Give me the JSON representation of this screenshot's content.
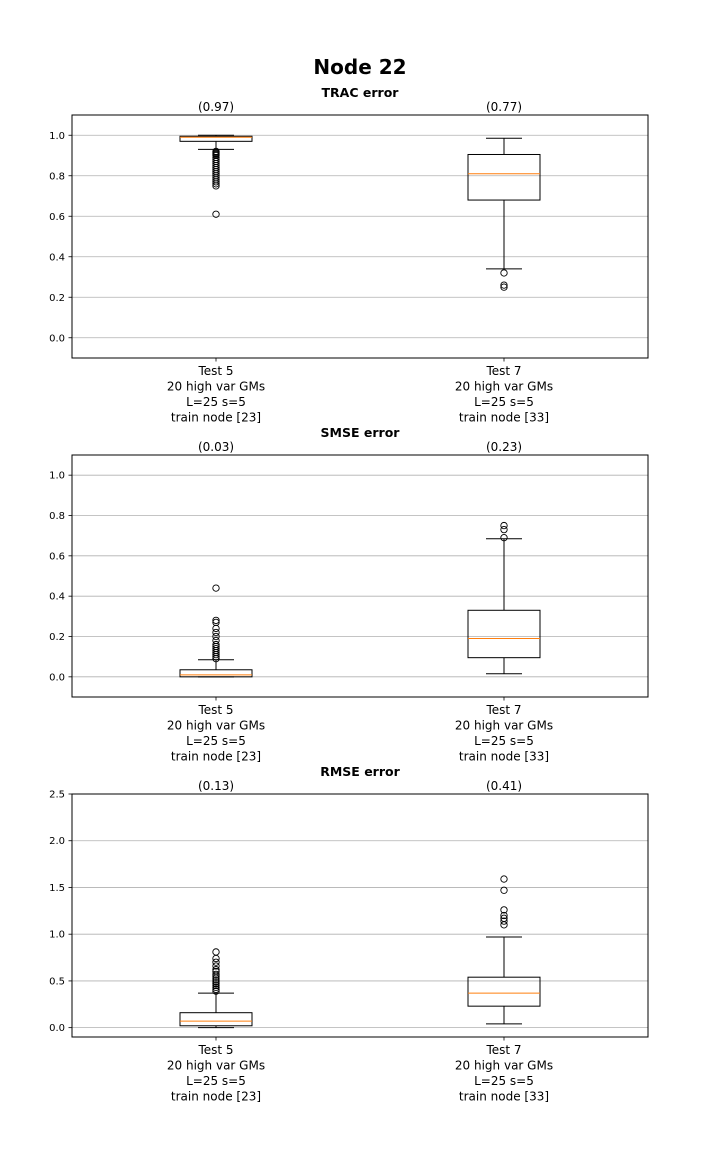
{
  "figure": {
    "title": "Node 22"
  },
  "chart_data": [
    {
      "type": "box",
      "title": "TRAC error",
      "ylim": [
        -0.1,
        1.1
      ],
      "yticks": [
        0.0,
        0.2,
        0.4,
        0.6,
        0.8,
        1.0
      ],
      "ytick_labels": [
        "0.0",
        "0.2",
        "0.4",
        "0.6",
        "0.8",
        "1.0"
      ],
      "grid": "y",
      "boxes": [
        {
          "annotation": "(0.97)",
          "label_lines": [
            "Test 5",
            "20 high var GMs",
            "L=25 s=5",
            "train node [23]"
          ],
          "whisker_low": 0.93,
          "q1": 0.97,
          "median": 0.99,
          "q3": 0.995,
          "whisker_high": 1.0,
          "fliers": [
            0.61,
            0.75,
            0.76,
            0.77,
            0.78,
            0.79,
            0.8,
            0.81,
            0.82,
            0.83,
            0.84,
            0.85,
            0.86,
            0.87,
            0.88,
            0.89,
            0.9,
            0.905,
            0.91,
            0.915,
            0.92
          ]
        },
        {
          "annotation": "(0.77)",
          "label_lines": [
            "Test 7",
            "20 high var GMs",
            "L=25 s=5",
            "train node [33]"
          ],
          "whisker_low": 0.34,
          "q1": 0.68,
          "median": 0.81,
          "q3": 0.905,
          "whisker_high": 0.985,
          "fliers": [
            0.32,
            0.26,
            0.25
          ]
        }
      ]
    },
    {
      "type": "box",
      "title": "SMSE error",
      "ylim": [
        -0.1,
        1.1
      ],
      "yticks": [
        0.0,
        0.2,
        0.4,
        0.6,
        0.8,
        1.0
      ],
      "ytick_labels": [
        "0.0",
        "0.2",
        "0.4",
        "0.6",
        "0.8",
        "1.0"
      ],
      "grid": "y",
      "boxes": [
        {
          "annotation": "(0.03)",
          "label_lines": [
            "Test 5",
            "20 high var GMs",
            "L=25 s=5",
            "train node [23]"
          ],
          "whisker_low": 0.0,
          "q1": 0.0,
          "median": 0.01,
          "q3": 0.035,
          "whisker_high": 0.085,
          "fliers": [
            0.09,
            0.1,
            0.11,
            0.12,
            0.13,
            0.14,
            0.15,
            0.16,
            0.18,
            0.2,
            0.22,
            0.24,
            0.27,
            0.28,
            0.44
          ]
        },
        {
          "annotation": "(0.23)",
          "label_lines": [
            "Test 7",
            "20 high var GMs",
            "L=25 s=5",
            "train node [33]"
          ],
          "whisker_low": 0.015,
          "q1": 0.095,
          "median": 0.19,
          "q3": 0.33,
          "whisker_high": 0.685,
          "fliers": [
            0.69,
            0.73,
            0.75
          ]
        }
      ]
    },
    {
      "type": "box",
      "title": "RMSE error",
      "ylim": [
        -0.1,
        2.5
      ],
      "yticks": [
        0.0,
        0.5,
        1.0,
        1.5,
        2.0,
        2.5
      ],
      "ytick_labels": [
        "0.0",
        "0.5",
        "1.0",
        "1.5",
        "2.0",
        "2.5"
      ],
      "grid": "y",
      "boxes": [
        {
          "annotation": "(0.13)",
          "label_lines": [
            "Test 5",
            "20 high var GMs",
            "L=25 s=5",
            "train node [23]"
          ],
          "whisker_low": 0.0,
          "q1": 0.02,
          "median": 0.07,
          "q3": 0.16,
          "whisker_high": 0.37,
          "fliers": [
            0.39,
            0.41,
            0.43,
            0.45,
            0.47,
            0.49,
            0.51,
            0.53,
            0.55,
            0.57,
            0.6,
            0.62,
            0.66,
            0.7,
            0.74,
            0.81
          ]
        },
        {
          "annotation": "(0.41)",
          "label_lines": [
            "Test 7",
            "20 high var GMs",
            "L=25 s=5",
            "train node [33]"
          ],
          "whisker_low": 0.04,
          "q1": 0.23,
          "median": 0.37,
          "q3": 0.54,
          "whisker_high": 0.97,
          "fliers": [
            1.1,
            1.14,
            1.17,
            1.2,
            1.26,
            1.47,
            1.59
          ]
        }
      ]
    }
  ],
  "colors": {
    "median": "#ff7f0e",
    "grid": "#b0b0b0",
    "frame": "#000000"
  }
}
